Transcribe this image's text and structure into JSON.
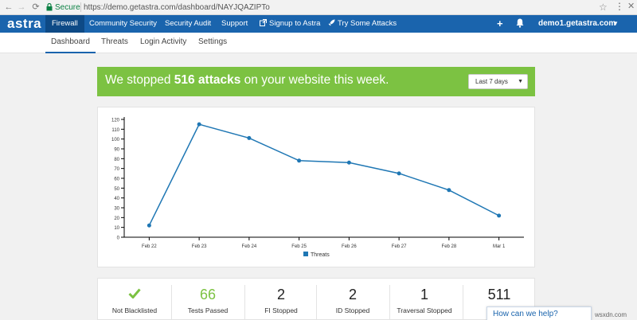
{
  "browser": {
    "back": "←",
    "forward": "→",
    "reload": "⟳",
    "secure_label": "Secure",
    "url": "https://demo.getastra.com/dashboard/NAYJQAZIPTo",
    "star": "☆",
    "menu": "⋮",
    "close": "✕"
  },
  "app_nav": {
    "logo": "astra",
    "items": [
      {
        "label": "Firewall"
      },
      {
        "label": "Community Security"
      },
      {
        "label": "Security Audit"
      },
      {
        "label": "Support"
      },
      {
        "label": "Signup to Astra",
        "icon": "external-link-icon"
      },
      {
        "label": "Try Some Attacks",
        "icon": "rocket-icon"
      }
    ],
    "plus": "+",
    "account": "demo1.getastra.com",
    "caret": "▼"
  },
  "sub_nav": {
    "items": [
      {
        "label": "Dashboard"
      },
      {
        "label": "Threats"
      },
      {
        "label": "Login Activity"
      },
      {
        "label": "Settings"
      }
    ]
  },
  "banner": {
    "prefix": "We stopped ",
    "highlight": "516 attacks",
    "suffix": " on your website this week.",
    "range": "Last 7 days",
    "range_caret": "▼",
    "color": "#7cc242"
  },
  "chart_data": {
    "type": "line",
    "categories": [
      "Feb 22",
      "Feb 23",
      "Feb 24",
      "Feb 25",
      "Feb 26",
      "Feb 27",
      "Feb 28",
      "Mar 1"
    ],
    "series": [
      {
        "name": "Threats",
        "values": [
          12,
          115,
          101,
          78,
          76,
          65,
          48,
          22
        ]
      }
    ],
    "ylim": [
      0,
      120
    ],
    "yticks": [
      0,
      10,
      20,
      30,
      40,
      50,
      60,
      70,
      80,
      90,
      100,
      110,
      120
    ],
    "legend": "bottom",
    "color": "#1f77b4",
    "grid": false
  },
  "stats": [
    {
      "value": "",
      "label": "Not Blacklisted",
      "icon": "check-icon"
    },
    {
      "value": "66",
      "label": "Tests Passed"
    },
    {
      "value": "2",
      "label": "FI Stopped"
    },
    {
      "value": "2",
      "label": "ID Stopped"
    },
    {
      "value": "1",
      "label": "Traversal Stopped"
    },
    {
      "value": "511",
      "label": ""
    }
  ],
  "help": {
    "label": "How can we help?"
  },
  "watermark": "wsxdn.com"
}
